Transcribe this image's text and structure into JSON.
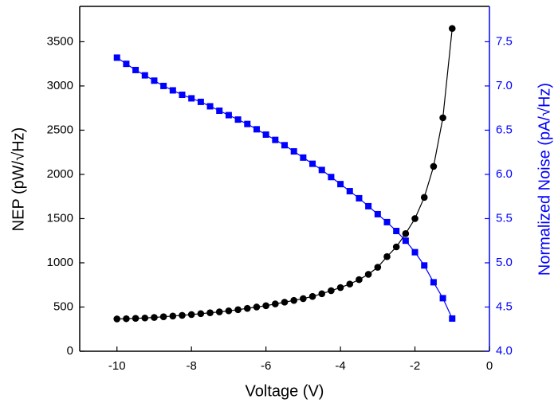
{
  "chart_data": {
    "type": "line",
    "xlabel": "Voltage (V)",
    "ylabel": "NEP (pW/√Hz)",
    "y2label": "Normalized Noise (pA/√Hz)",
    "x": [
      -10,
      -9.75,
      -9.5,
      -9.25,
      -9,
      -8.75,
      -8.5,
      -8.25,
      -8,
      -7.75,
      -7.5,
      -7.25,
      -7,
      -6.75,
      -6.5,
      -6.25,
      -6,
      -5.75,
      -5.5,
      -5.25,
      -5,
      -4.75,
      -4.5,
      -4.25,
      -4,
      -3.75,
      -3.5,
      -3.25,
      -3,
      -2.75,
      -2.5,
      -2.25,
      -2,
      -1.75,
      -1.5,
      -1.25,
      -1
    ],
    "series": [
      {
        "name": "NEP",
        "color": "#000000",
        "marker": "circle",
        "axis": "y",
        "values": [
          365,
          368,
          372,
          376,
          382,
          390,
          398,
          406,
          415,
          425,
          435,
          445,
          457,
          470,
          485,
          500,
          515,
          535,
          555,
          575,
          595,
          620,
          650,
          685,
          720,
          760,
          810,
          870,
          950,
          1070,
          1180,
          1330,
          1500,
          1740,
          2090,
          2640,
          3650
        ]
      },
      {
        "name": "Normalized Noise",
        "color": "#0000ff",
        "marker": "square",
        "axis": "y2",
        "values": [
          7.32,
          7.25,
          7.18,
          7.12,
          7.06,
          7.0,
          6.95,
          6.9,
          6.86,
          6.82,
          6.77,
          6.72,
          6.67,
          6.62,
          6.57,
          6.51,
          6.45,
          6.39,
          6.33,
          6.26,
          6.19,
          6.12,
          6.05,
          5.97,
          5.89,
          5.81,
          5.73,
          5.64,
          5.55,
          5.46,
          5.36,
          5.25,
          5.12,
          4.97,
          4.78,
          4.6,
          4.37
        ]
      }
    ],
    "xlim": [
      -11,
      0
    ],
    "xticks": [
      -10,
      -8,
      -6,
      -4,
      -2,
      0
    ],
    "ylim": [
      0,
      3900
    ],
    "yticks": [
      0,
      500,
      1000,
      1500,
      2000,
      2500,
      3000,
      3500
    ],
    "y2lim": [
      4.0,
      7.9
    ],
    "y2ticks": [
      {
        "value": 4.0,
        "label": "4.0"
      },
      4.5,
      {
        "value": 5.0,
        "label": "5.0"
      },
      5.5,
      {
        "value": 6.0,
        "label": "6.0"
      },
      6.5,
      {
        "value": 7.0,
        "label": "7.0"
      },
      7.5
    ],
    "y2color": "#0000ff"
  }
}
